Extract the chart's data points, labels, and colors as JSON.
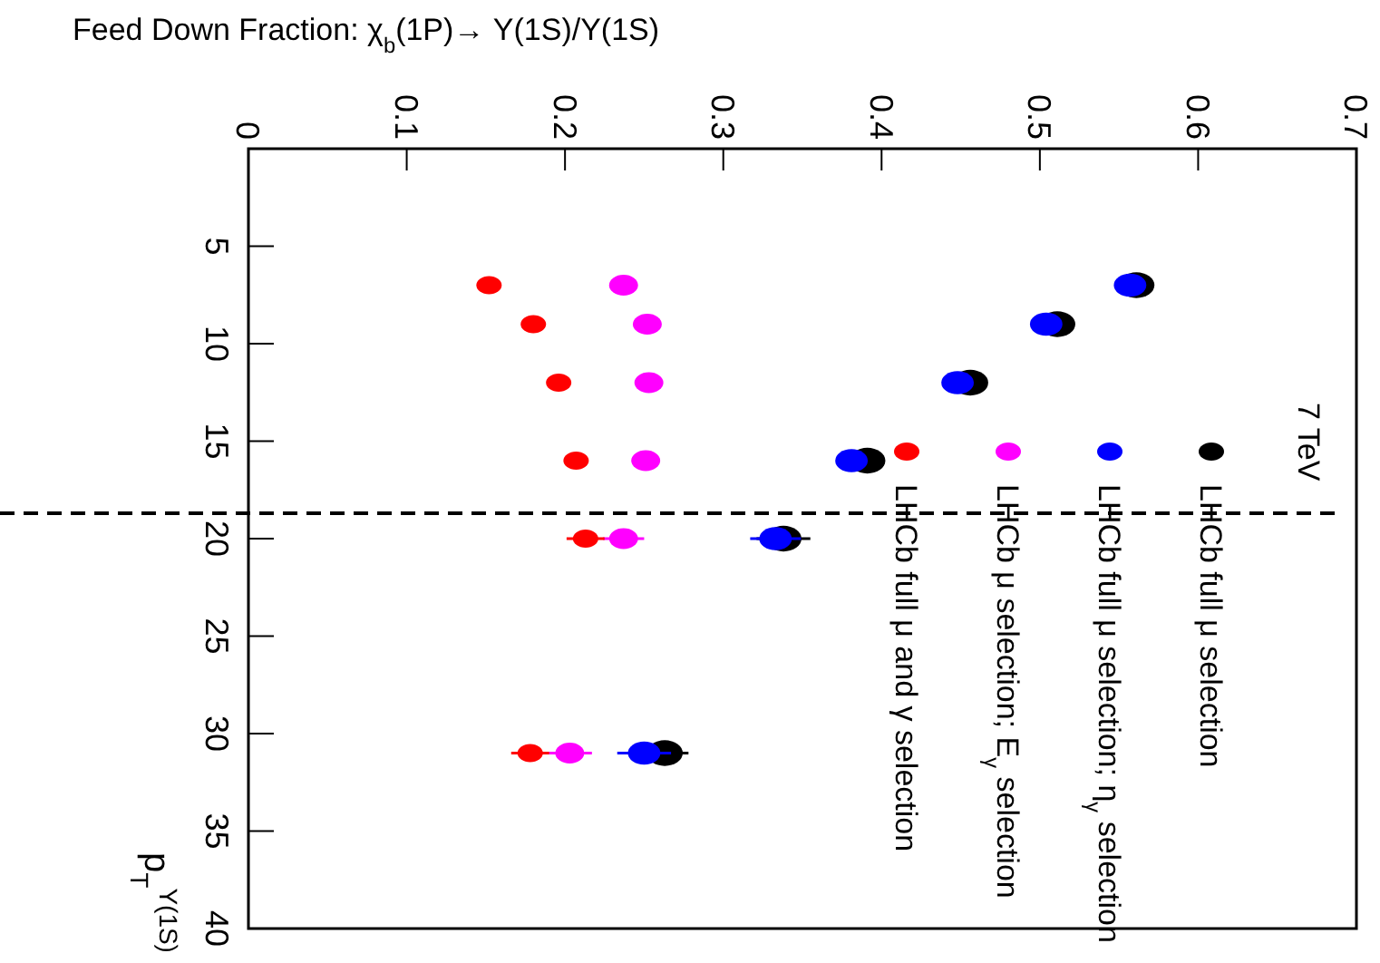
{
  "chart_data": {
    "type": "scatter",
    "title": "Feed Down Fraction: χ$_{b}$(1P)→ Υ(1S)/Υ(1S)",
    "ylabel": "p$_{T}$$^{Υ(1S)}$",
    "xlim": [
      0,
      0.7
    ],
    "xticks": [
      0,
      0.1,
      0.2,
      0.3,
      0.4,
      0.5,
      0.6,
      0.7
    ],
    "ylim": [
      40,
      0
    ],
    "yticks": [
      5,
      10,
      15,
      20,
      25,
      30,
      35,
      40
    ],
    "grid": false,
    "legend": "right",
    "marker": "circle",
    "annotations": [
      "7 TeV"
    ],
    "ref_lines": [
      {
        "axis": "y",
        "value": 18.7,
        "color": "#000000",
        "line_style": "dashed"
      }
    ],
    "series": [
      {
        "name": "LHCb full μ selection",
        "color": "#000000",
        "x": [
          0.561,
          0.511,
          0.456,
          0.391,
          0.338,
          0.263
        ],
        "values": [
          7,
          9,
          12,
          16,
          20,
          31
        ],
        "xerrors": [
          null,
          null,
          null,
          null,
          0.017,
          0.015
        ]
      },
      {
        "name": "LHCb full μ selection; η$_{γ}$ selection",
        "color": "#0000ff",
        "x": [
          0.557,
          0.504,
          0.448,
          0.381,
          0.333,
          0.25
        ],
        "values": [
          7,
          9,
          12,
          16,
          20,
          31
        ],
        "xerrors": [
          null,
          null,
          null,
          null,
          0.016,
          0.017
        ]
      },
      {
        "name": "LHCb μ selection; E$_{γ}$ selection",
        "color": "#ff00ff",
        "x": [
          0.237,
          0.252,
          0.253,
          0.251,
          0.237,
          0.203
        ],
        "values": [
          7,
          9,
          12,
          16,
          20,
          31
        ],
        "xerrors": [
          null,
          null,
          null,
          null,
          0.013,
          0.014
        ]
      },
      {
        "name": "LHCb full μ and γ selection",
        "color": "#ff0000",
        "x": [
          0.152,
          0.18,
          0.196,
          0.207,
          0.213,
          0.178
        ],
        "values": [
          7,
          9,
          12,
          16,
          20,
          31
        ],
        "xerrors": [
          null,
          null,
          null,
          null,
          0.012,
          0.012
        ]
      }
    ]
  }
}
